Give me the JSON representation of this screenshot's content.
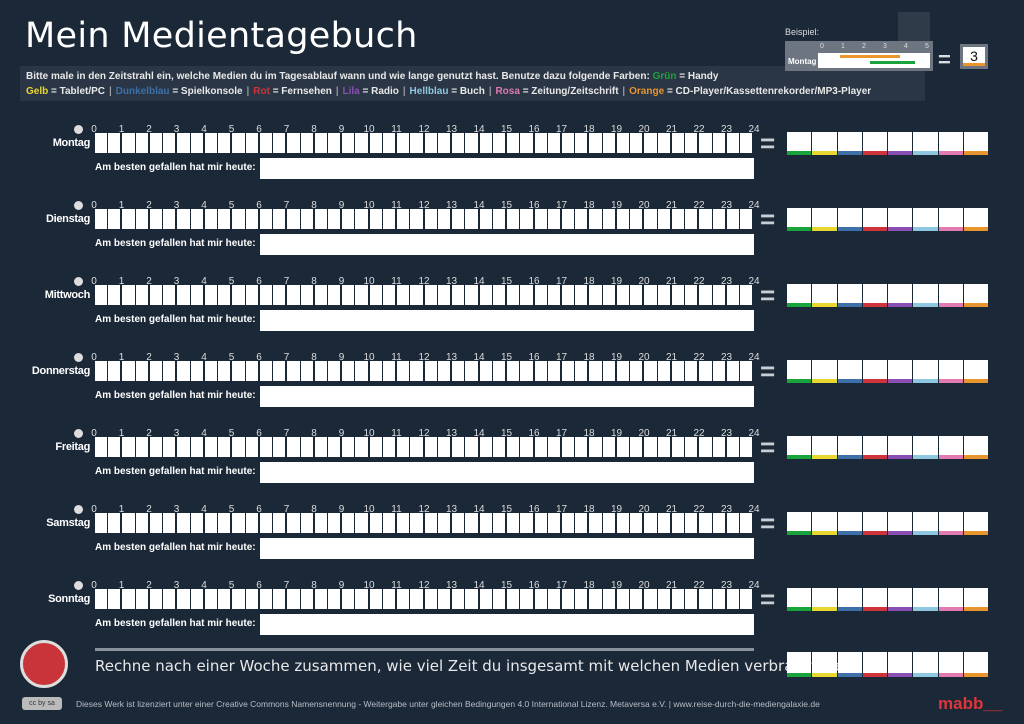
{
  "title": "Mein Medientagebuch",
  "instructions": {
    "intro": "Bitte male in den Zeitstrahl ein, welche Medien du im Tagesablauf wann und wie lange genutzt hast. Benutze dazu folgende Farben:",
    "legend": [
      {
        "color_name": "Grün",
        "meaning": "= Handy",
        "color": "#1aa33a"
      },
      {
        "color_name": "Gelb",
        "meaning": "= Tablet/PC",
        "color": "#e8d631"
      },
      {
        "color_name": "Dunkelblau",
        "meaning": "= Spielkonsole",
        "color": "#3d6fa8"
      },
      {
        "color_name": "Rot",
        "meaning": "= Fernsehen",
        "color": "#d0343a"
      },
      {
        "color_name": "Lila",
        "meaning": "= Radio",
        "color": "#8a4fb3"
      },
      {
        "color_name": "Hellblau",
        "meaning": "= Buch",
        "color": "#8ec8e0"
      },
      {
        "color_name": "Rosa",
        "meaning": "= Zeitung/Zeitschrift",
        "color": "#e07ab0"
      },
      {
        "color_name": "Orange",
        "meaning": "= CD-Player/Kassettenrekorder/MP3-Player",
        "color": "#e8952e"
      }
    ]
  },
  "example": {
    "label": "Beispiel:",
    "day": "Montag",
    "hours": [
      "0",
      "1",
      "2",
      "3",
      "4",
      "5"
    ],
    "result": "3"
  },
  "hours": [
    "0",
    "1",
    "2",
    "3",
    "4",
    "5",
    "6",
    "7",
    "8",
    "9",
    "10",
    "11",
    "12",
    "13",
    "14",
    "15",
    "16",
    "17",
    "18",
    "19",
    "20",
    "21",
    "22",
    "23",
    "24"
  ],
  "equals": "=",
  "favorite_label": "Am besten gefallen hat mir heute:",
  "days": [
    "Montag",
    "Dienstag",
    "Mittwoch",
    "Donnerstag",
    "Freitag",
    "Samstag",
    "Sonntag"
  ],
  "summary": "Rechne nach einer Woche zusammen, wie viel Zeit du insgesamt mit welchen Medien verbracht hast:",
  "footer": "Dieses Werk ist lizenziert unter einer Creative Commons Namensnennung - Weitergabe unter gleichen Bedingungen 4.0 International Lizenz. Metaversa e.V. | www.reise-durch-die-mediengalaxie.de",
  "brand": "mabb__",
  "cc_badge": "cc by sa"
}
